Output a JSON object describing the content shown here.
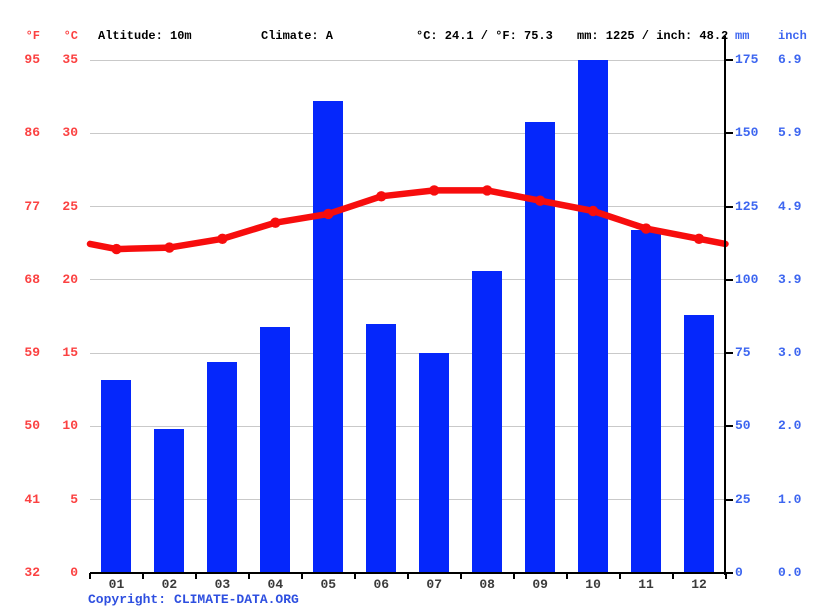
{
  "header": {
    "f_unit": "°F",
    "c_unit": "°C",
    "altitude": "Altitude: 10m",
    "climate": "Climate: A",
    "temperature_summary": "°C: 24.1 / °F: 75.3",
    "precipitation_summary": "mm: 1225 / inch: 48.2",
    "mm_unit": "mm",
    "inch_unit": "inch"
  },
  "axes": {
    "left_f": [
      "95",
      "86",
      "77",
      "68",
      "59",
      "50",
      "41",
      "32"
    ],
    "left_c": [
      "35",
      "30",
      "25",
      "20",
      "15",
      "10",
      "5",
      "0"
    ],
    "right_mm": [
      "175",
      "150",
      "125",
      "100",
      "75",
      "50",
      "25",
      "0"
    ],
    "right_inch": [
      "6.9",
      "5.9",
      "4.9",
      "3.9",
      "3.0",
      "2.0",
      "1.0",
      "0.0"
    ]
  },
  "footer": {
    "copyright_prefix": "Copyright:",
    "copyright_link_text": "CLIMATE-DATA.ORG"
  },
  "colors": {
    "bar_blue": "#0527fb",
    "line_red": "#f70d0d",
    "axis_red_text": "#fb4141",
    "axis_blue_text": "#3d66f0",
    "copyright_blue": "#2e4fe0",
    "gridline_gray": "#c9c9c9",
    "axis_black": "#000000",
    "month_text": "#3b3b3b"
  },
  "chart_data": {
    "type": "bar",
    "subtype": "climate chart: precipitation bars + temperature line",
    "categories": [
      "01",
      "02",
      "03",
      "04",
      "05",
      "06",
      "07",
      "08",
      "09",
      "10",
      "11",
      "12"
    ],
    "series": [
      {
        "name": "Precipitation",
        "type": "bar",
        "unit": "mm",
        "values": [
          66,
          49,
          72,
          84,
          161,
          85,
          75,
          103,
          154,
          175,
          117,
          88
        ]
      },
      {
        "name": "Temperature",
        "type": "line",
        "unit": "°C",
        "values": [
          22.1,
          22.2,
          22.8,
          23.9,
          24.5,
          25.7,
          26.1,
          26.1,
          25.4,
          24.7,
          23.5,
          22.8
        ]
      }
    ],
    "temperature_axis": {
      "side": "left",
      "units": [
        "°F",
        "°C"
      ],
      "range_c": [
        0,
        35
      ],
      "ticks_c": [
        35,
        30,
        25,
        20,
        15,
        10,
        5,
        0
      ],
      "ticks_f": [
        95,
        86,
        77,
        68,
        59,
        50,
        41,
        32
      ]
    },
    "precipitation_axis": {
      "side": "right",
      "units": [
        "mm",
        "inch"
      ],
      "range_mm": [
        0,
        175
      ],
      "ticks_mm": [
        175,
        150,
        125,
        100,
        75,
        50,
        25,
        0
      ],
      "ticks_inch": [
        6.9,
        5.9,
        4.9,
        3.9,
        3.0,
        2.0,
        1.0,
        0.0
      ]
    },
    "annotations": {
      "altitude": "10m",
      "climate_class": "A",
      "mean_temp_c": 24.1,
      "mean_temp_f": 75.3,
      "annual_precip_mm": 1225,
      "annual_precip_inch": 48.2
    },
    "grid": true,
    "legend_position": "none",
    "title": ""
  }
}
